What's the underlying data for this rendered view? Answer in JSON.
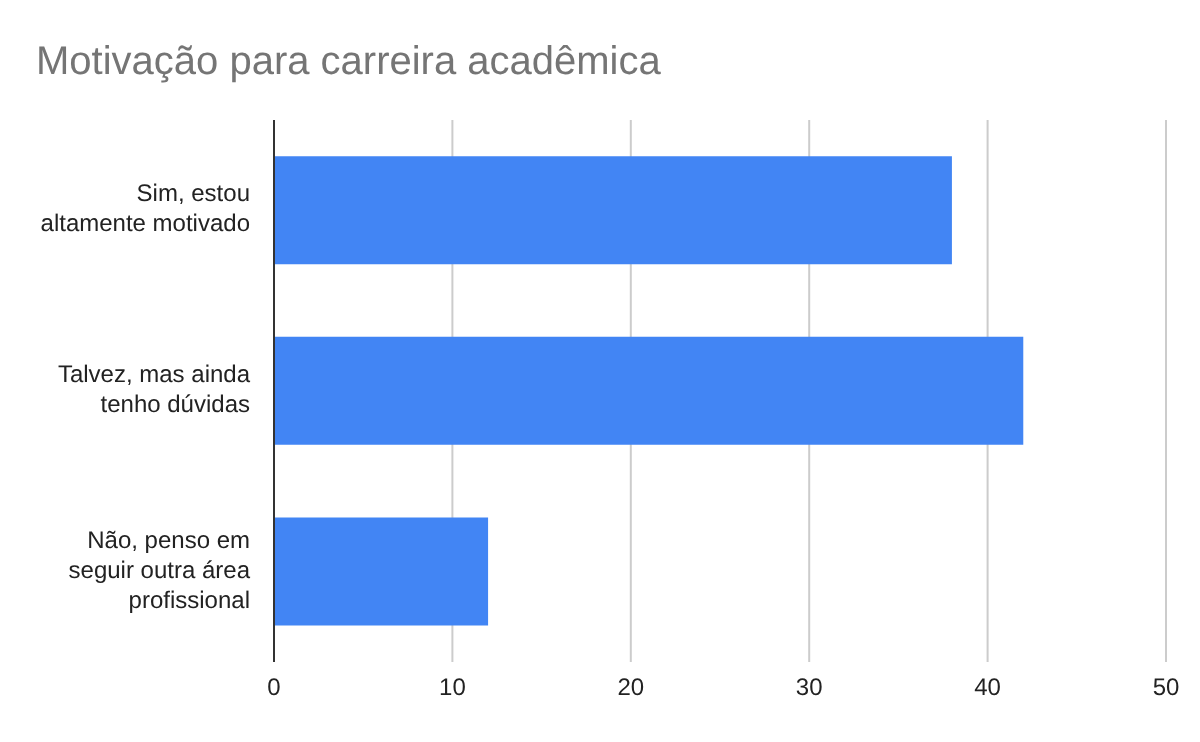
{
  "chart_data": {
    "type": "bar",
    "orientation": "horizontal",
    "title": "Motivação para carreira acadêmica",
    "categories": [
      "Sim, estou altamente motivado",
      "Talvez, mas ainda tenho dúvidas",
      "Não, penso em seguir outra área profissional"
    ],
    "values": [
      38,
      42,
      12
    ],
    "color": "#4285f4",
    "xlim": [
      0,
      50
    ],
    "xticks": [
      0,
      10,
      20,
      30,
      40,
      50
    ],
    "grid": "x"
  }
}
